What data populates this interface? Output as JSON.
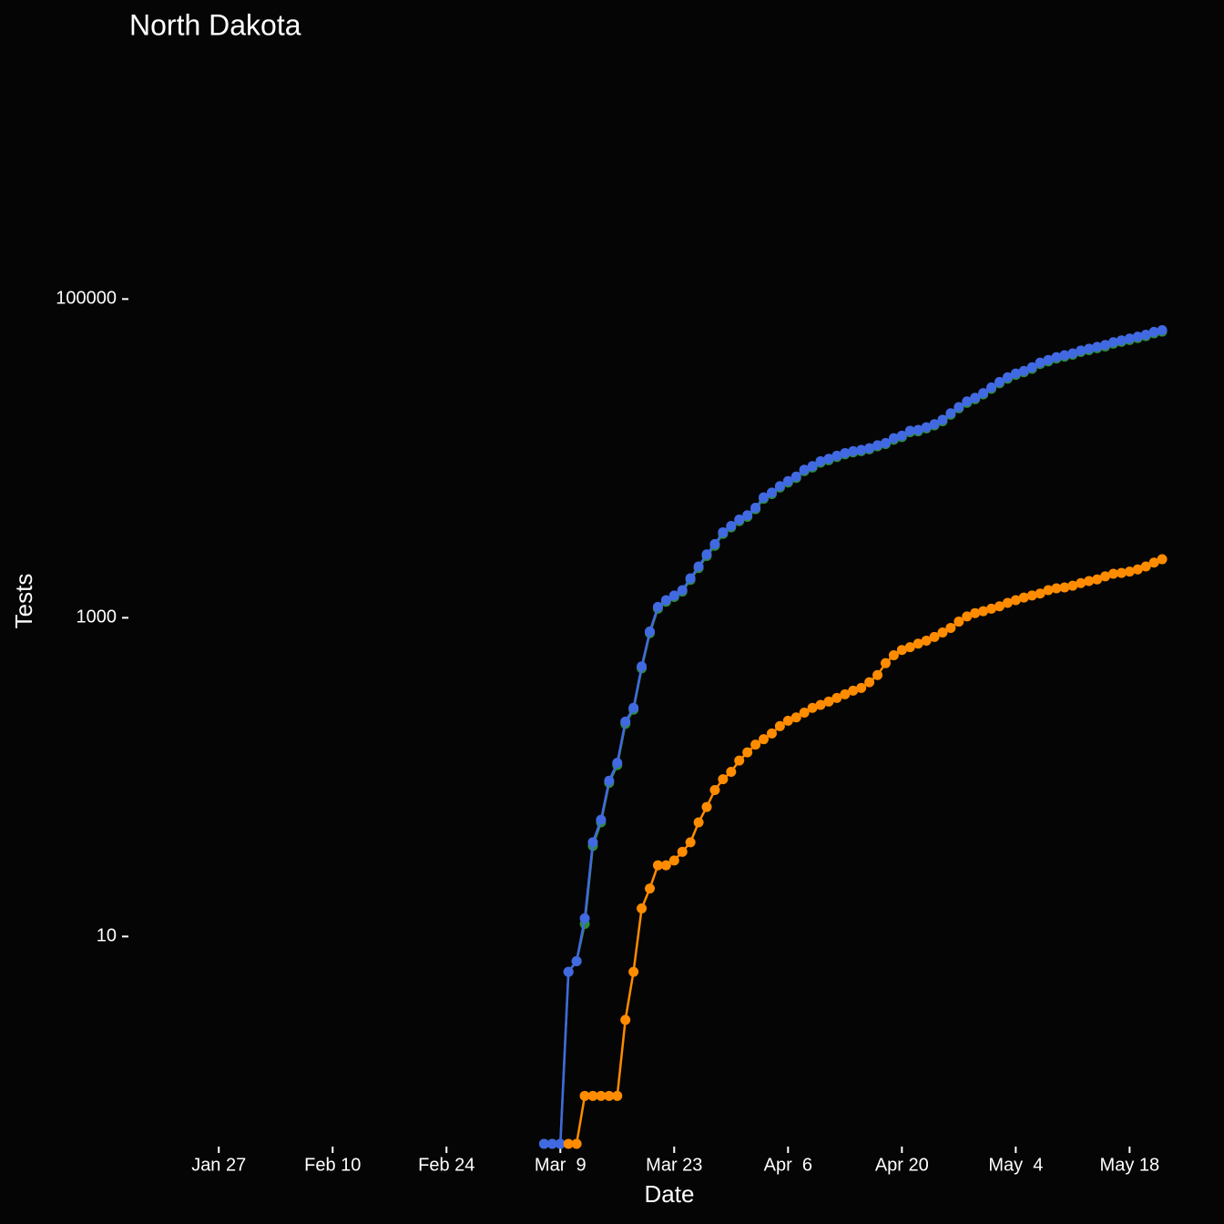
{
  "chart_data": {
    "type": "line",
    "title": "North Dakota",
    "x_label": "Date",
    "y_label": "Tests",
    "log_y": true,
    "x": [
      "Mar 7",
      "Mar 8",
      "Mar 9",
      "Mar 10",
      "Mar 11",
      "Mar 12",
      "Mar 13",
      "Mar 14",
      "Mar 15",
      "Mar 16",
      "Mar 17",
      "Mar 18",
      "Mar 19",
      "Mar 20",
      "Mar 21",
      "Mar 22",
      "Mar 23",
      "Mar 24",
      "Mar 25",
      "Mar 26",
      "Mar 27",
      "Mar 28",
      "Mar 29",
      "Mar 30",
      "Mar 31",
      "Apr 1",
      "Apr 2",
      "Apr 3",
      "Apr 4",
      "Apr 5",
      "Apr 6",
      "Apr 7",
      "Apr 8",
      "Apr 9",
      "Apr 10",
      "Apr 11",
      "Apr 12",
      "Apr 13",
      "Apr 14",
      "Apr 15",
      "Apr 16",
      "Apr 17",
      "Apr 18",
      "Apr 19",
      "Apr 20",
      "Apr 21",
      "Apr 22",
      "Apr 23",
      "Apr 24",
      "Apr 25",
      "Apr 26",
      "Apr 27",
      "Apr 28",
      "Apr 29",
      "Apr 30",
      "May 1",
      "May 2",
      "May 3",
      "May 4",
      "May 5",
      "May 6",
      "May 7",
      "May 8",
      "May 9",
      "May 10",
      "May 11",
      "May 12",
      "May 13",
      "May 14",
      "May 15",
      "May 16",
      "May 17",
      "May 18",
      "May 19",
      "May 20",
      "May 21",
      "May 22"
    ],
    "series": [
      {
        "color": "#2e8b3a",
        "values": [
          0,
          0,
          0,
          6,
          7,
          12,
          37,
          52,
          92,
          119,
          216,
          265,
          482,
          800,
          1140,
          1260,
          1350,
          1460,
          1730,
          2050,
          2440,
          2830,
          3360,
          3690,
          4040,
          4300,
          4800,
          5580,
          5970,
          6560,
          7050,
          7540,
          8320,
          8760,
          9400,
          9740,
          10200,
          10600,
          10900,
          11100,
          11400,
          11900,
          12300,
          13100,
          13600,
          14600,
          14800,
          15400,
          16100,
          17100,
          18800,
          20600,
          22300,
          23500,
          25200,
          27300,
          29600,
          31600,
          33400,
          34700,
          36500,
          39100,
          40600,
          42300,
          43500,
          44700,
          46500,
          47800,
          49100,
          50400,
          52500,
          53900,
          55300,
          56900,
          58500,
          60900,
          62500
        ]
      },
      {
        "color": "#4169e1",
        "values": [
          0,
          0,
          0,
          6,
          7,
          13,
          39,
          54,
          95,
          123,
          223,
          272,
          495,
          820,
          1170,
          1290,
          1380,
          1490,
          1770,
          2100,
          2500,
          2900,
          3440,
          3770,
          4130,
          4400,
          4900,
          5700,
          6100,
          6700,
          7200,
          7700,
          8500,
          8950,
          9600,
          9950,
          10400,
          10800,
          11100,
          11300,
          11600,
          12100,
          12500,
          13400,
          13900,
          14900,
          15100,
          15700,
          16400,
          17500,
          19200,
          21000,
          22800,
          24000,
          25700,
          27900,
          30200,
          32300,
          34100,
          35400,
          37300,
          39900,
          41500,
          43200,
          44400,
          45600,
          47500,
          48800,
          50100,
          51500,
          53600,
          55000,
          56500,
          58100,
          59700,
          62200,
          63800
        ]
      },
      {
        "color": "#ff8c00",
        "values": [
          null,
          null,
          null,
          0,
          0,
          1,
          1,
          1,
          1,
          1,
          3,
          6,
          15,
          20,
          28,
          28,
          30,
          34,
          39,
          52,
          65,
          83,
          97,
          108,
          127,
          143,
          160,
          173,
          188,
          209,
          226,
          237,
          254,
          272,
          284,
          298,
          314,
          331,
          349,
          363,
          394,
          437,
          519,
          582,
          628,
          654,
          688,
          718,
          758,
          808,
          864,
          946,
          1020,
          1070,
          1100,
          1140,
          1180,
          1240,
          1290,
          1340,
          1380,
          1420,
          1490,
          1530,
          1550,
          1590,
          1650,
          1700,
          1740,
          1820,
          1890,
          1910,
          1950,
          2010,
          2100,
          2220,
          2330
        ]
      }
    ],
    "xlim": [
      "Jan 16",
      "May 23"
    ],
    "xticks": [
      "Jan 27",
      "Feb 10",
      "Feb 24",
      "Mar  9",
      "Mar 23",
      "Apr  6",
      "Apr 20",
      "May  4",
      "May 18"
    ],
    "ylim": [
      0.5,
      4000000
    ],
    "yticks": [
      10,
      1000,
      100000
    ]
  }
}
